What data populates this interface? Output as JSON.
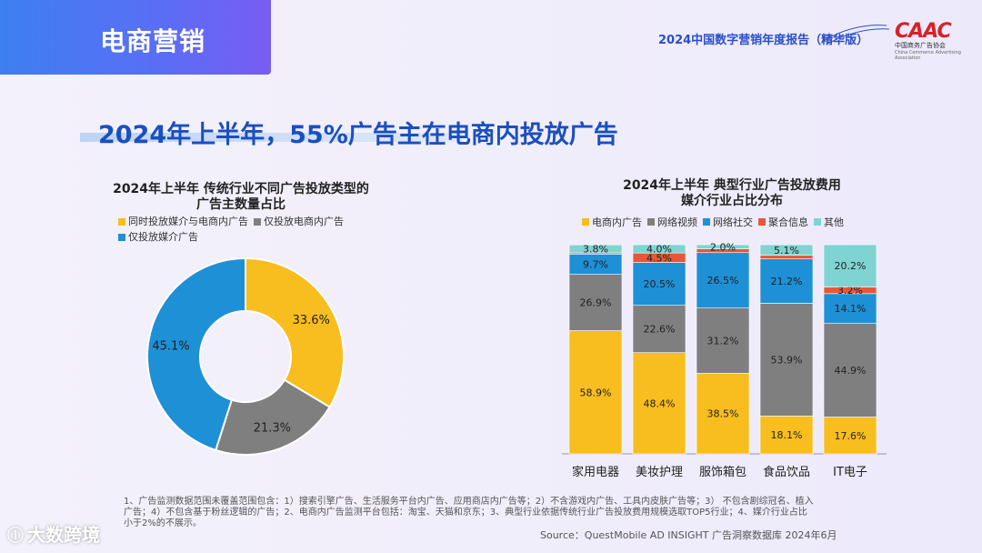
{
  "section_tab": "电商营销",
  "report_title": "2024中国数字营销年度报告（精华版）",
  "logo": {
    "mark": "CAAC",
    "cn": "中国商务广告协会",
    "en": "China Commerce Advertising Association"
  },
  "headline": "2024年上半年，55%广告主在电商内投放广告",
  "chart_data": [
    {
      "type": "pie",
      "title_lines": [
        "2024年上半年 传统行业不同广告投放类型的",
        "广告主数量占比"
      ],
      "series": [
        {
          "name": "同时投放媒介与电商内广告",
          "value": 33.6,
          "color": "#f8bd1e"
        },
        {
          "name": "仅投放电商内广告",
          "value": 21.3,
          "color": "#7f7f7f"
        },
        {
          "name": "仅投放媒介广告",
          "value": 45.1,
          "color": "#1e90d6"
        }
      ],
      "value_labels": [
        "33.6%",
        "21.3%",
        "45.1%"
      ]
    },
    {
      "type": "bar",
      "stacked": true,
      "title_lines": [
        "2024年上半年 典型行业广告投放费用",
        "媒介行业占比分布"
      ],
      "categories": [
        "家用电器",
        "美妆护理",
        "服饰箱包",
        "食品饮品",
        "IT电子"
      ],
      "series": [
        {
          "name": "电商内广告",
          "color": "#f8bd1e",
          "values": [
            58.9,
            48.4,
            38.5,
            18.1,
            17.6
          ],
          "labels": [
            "58.9%",
            "48.4%",
            "38.5%",
            "18.1%",
            "17.6%"
          ]
        },
        {
          "name": "网络视频",
          "color": "#7f7f7f",
          "values": [
            26.9,
            22.6,
            31.2,
            53.9,
            44.9
          ],
          "labels": [
            "26.9%",
            "22.6%",
            "31.2%",
            "53.9%",
            "44.9%"
          ]
        },
        {
          "name": "网络社交",
          "color": "#1e90d6",
          "values": [
            9.7,
            20.5,
            26.5,
            21.2,
            14.1
          ],
          "labels": [
            "9.7%",
            "20.5%",
            "26.5%",
            "21.2%",
            "14.1%"
          ]
        },
        {
          "name": "聚合信息",
          "color": "#e8573a",
          "values": [
            0.6,
            4.5,
            1.8,
            1.7,
            3.2
          ],
          "labels": [
            "",
            "4.5%",
            "",
            "",
            "3.2%"
          ]
        },
        {
          "name": "其他",
          "color": "#7fd4d3",
          "values": [
            3.8,
            4.0,
            2.0,
            5.1,
            20.2
          ],
          "labels": [
            "3.8%",
            "4.0%",
            "2.0%",
            "5.1%",
            "20.2%"
          ]
        }
      ],
      "ylim": [
        0,
        100
      ]
    }
  ],
  "notes": "1、广告监测数据范围未覆盖范围包含：1）搜索引擎广告、生活服务平台内广告、应用商店内广告等；2）不含游戏内广告、工具内皮肤广告等；3） 不包含剧综冠名、植入广告；4）不包含基于粉丝逻辑的广告；2、电商内广告监测平台包括：淘宝、天猫和京东；3、典型行业依据传统行业广告投放费用规模选取TOP5行业；4、媒介行业占比小于2%的不展示。",
  "source": "Source：QuestMobile AD INSIGHT 广告洞察数据库 2024年6月",
  "watermark": "大数跨境"
}
